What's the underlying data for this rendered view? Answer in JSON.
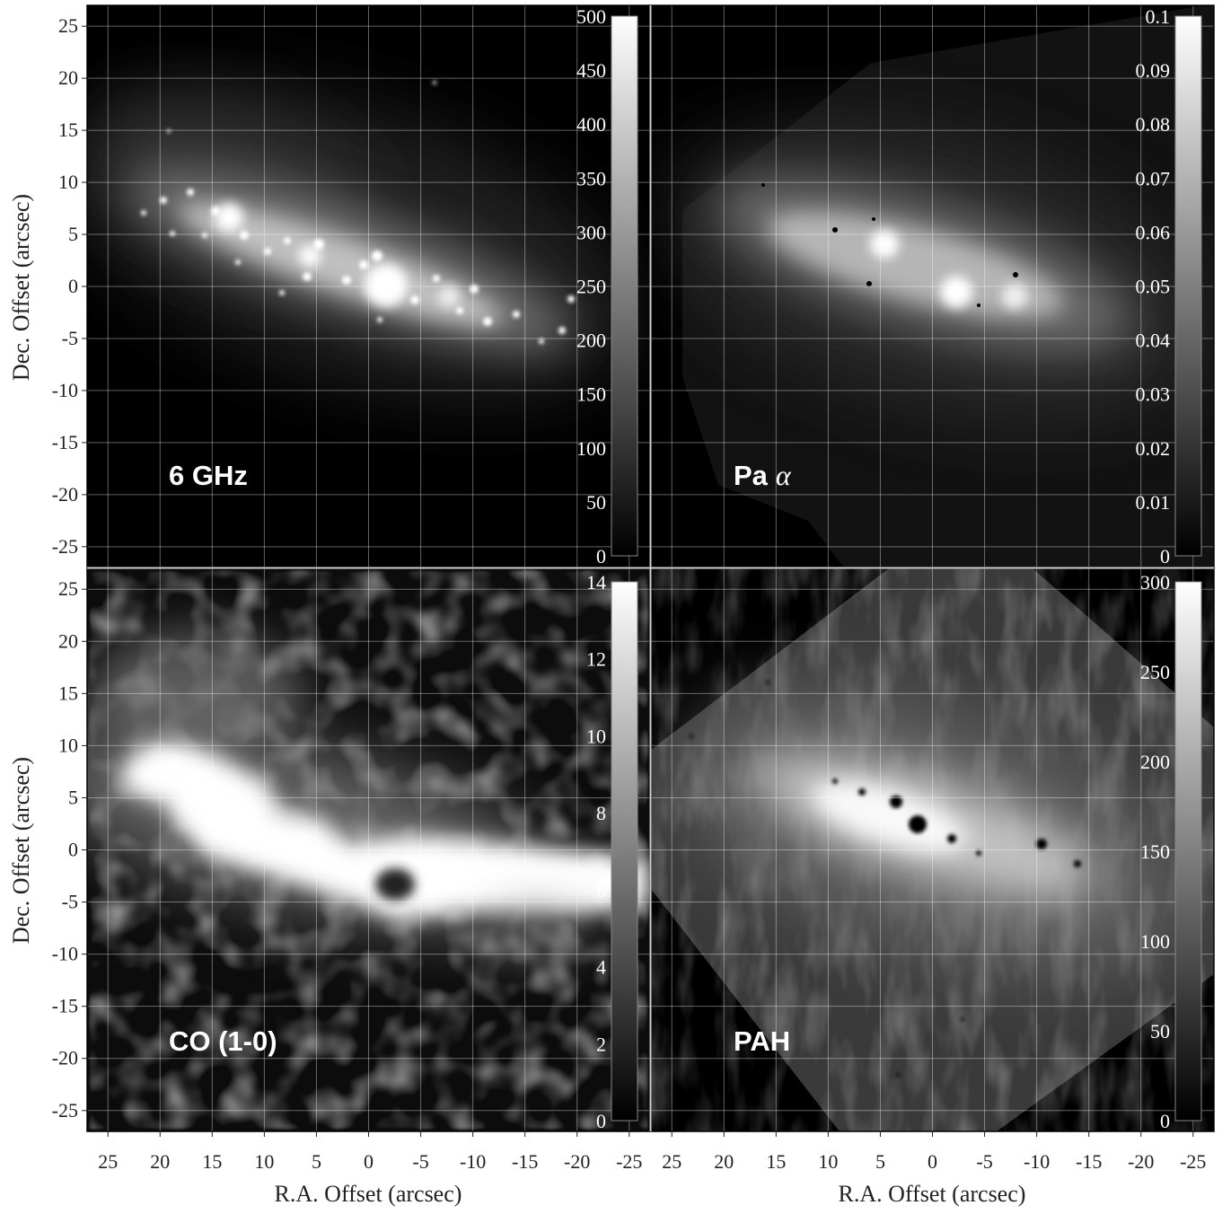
{
  "axes": {
    "xlabel": "R.A. Offset (arcsec)",
    "ylabel": "Dec. Offset (arcsec)",
    "x_ticks": [
      "25",
      "20",
      "15",
      "10",
      "5",
      "0",
      "-5",
      "-10",
      "-15",
      "-20",
      "-25"
    ],
    "y_ticks": [
      "25",
      "20",
      "15",
      "10",
      "5",
      "0",
      "-5",
      "-10",
      "-15",
      "-20",
      "-25"
    ]
  },
  "panels": [
    {
      "id": "6ghz",
      "label": "6 GHz",
      "label_italic": "",
      "colorbar": [
        "500",
        "450",
        "400",
        "350",
        "300",
        "250",
        "200",
        "150",
        "100",
        "50",
        "0"
      ]
    },
    {
      "id": "paa",
      "label": "Pa",
      "label_italic": "α",
      "colorbar": [
        "0.1",
        "0.09",
        "0.08",
        "0.07",
        "0.06",
        "0.05",
        "0.04",
        "0.03",
        "0.02",
        "0.01",
        "0"
      ]
    },
    {
      "id": "co",
      "label": "CO (1-0)",
      "label_italic": "",
      "colorbar": [
        "14",
        "12",
        "10",
        "8",
        "6",
        "4",
        "2",
        "0"
      ]
    },
    {
      "id": "pah",
      "label": "PAH",
      "label_italic": "",
      "colorbar": [
        "300",
        "250",
        "200",
        "150",
        "100",
        "50",
        "0"
      ]
    }
  ],
  "chart_data": {
    "type": "heatmap",
    "panels": [
      "6 GHz",
      "Pa α",
      "CO (1-0)",
      "PAH"
    ],
    "colormap": "grayscale",
    "xlim": [
      27,
      -27
    ],
    "ylim": [
      -27,
      27
    ],
    "grid": true,
    "colorbar_ranges": [
      [
        0,
        500
      ],
      [
        0,
        0.1
      ],
      [
        0,
        15
      ],
      [
        0,
        300
      ]
    ]
  }
}
